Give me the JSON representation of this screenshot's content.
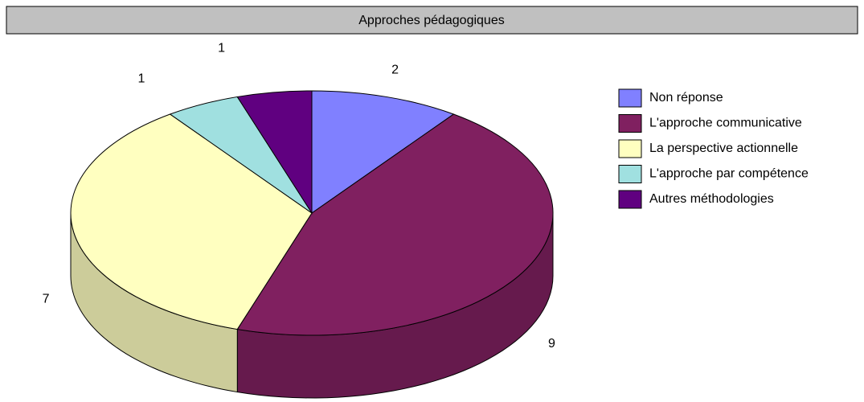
{
  "chart_data": {
    "type": "pie",
    "title": "Approches pédagogiques",
    "categories": [
      "Non réponse",
      "L'approche communicative",
      "La perspective actionnelle",
      "L'approche par compétence",
      "Autres méthodologies"
    ],
    "values": [
      2,
      9,
      7,
      1,
      1
    ],
    "colors": [
      "#8080ff",
      "#802060",
      "#ffffc0",
      "#a0e0e0",
      "#600080"
    ],
    "legend": "right"
  }
}
